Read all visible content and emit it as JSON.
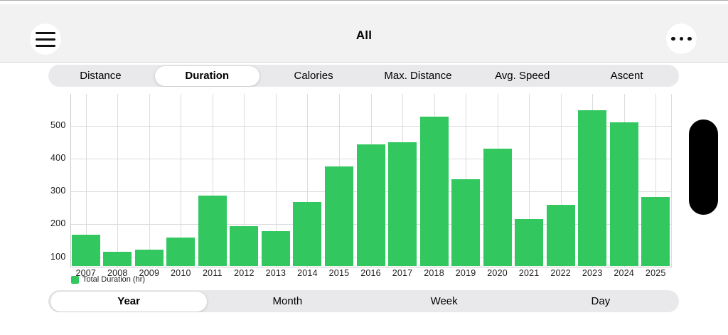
{
  "header": {
    "title": "All"
  },
  "icons": {
    "menu": "hamburger-icon",
    "more": "ellipsis-icon"
  },
  "metric_tabs": [
    {
      "label": "Distance",
      "selected": false
    },
    {
      "label": "Duration",
      "selected": true
    },
    {
      "label": "Calories",
      "selected": false
    },
    {
      "label": "Max. Distance",
      "selected": false
    },
    {
      "label": "Avg. Speed",
      "selected": false
    },
    {
      "label": "Ascent",
      "selected": false
    }
  ],
  "period_tabs": [
    {
      "label": "Year",
      "selected": true
    },
    {
      "label": "Month",
      "selected": false
    },
    {
      "label": "Week",
      "selected": false
    },
    {
      "label": "Day",
      "selected": false
    }
  ],
  "chart_data": {
    "type": "bar",
    "title": "",
    "categories": [
      "2007",
      "2008",
      "2009",
      "2010",
      "2011",
      "2012",
      "2013",
      "2014",
      "2015",
      "2016",
      "2017",
      "2018",
      "2019",
      "2020",
      "2021",
      "2022",
      "2023",
      "2024",
      "2025"
    ],
    "values": [
      168,
      116,
      121,
      159,
      288,
      194,
      179,
      267,
      377,
      443,
      450,
      528,
      337,
      430,
      215,
      259,
      548,
      510,
      283
    ],
    "series_name": "Total Duration (hr)",
    "xlabel": "",
    "ylabel": "",
    "y_ticks": [
      100,
      200,
      300,
      400,
      500
    ],
    "ylim": [
      70,
      595
    ],
    "grid": true,
    "legend_position": "bottom-left",
    "bar_color": "#32c75f"
  },
  "colors": {
    "bar_green": "#32c75f",
    "header_bg": "#f2f2f3",
    "segment_bg": "#e9e9eb",
    "selected_pill": "#ffffff",
    "gridline": "#dcdcde",
    "axis": "#c7c7c9",
    "text": "#000000",
    "system_pill": "#000000"
  }
}
